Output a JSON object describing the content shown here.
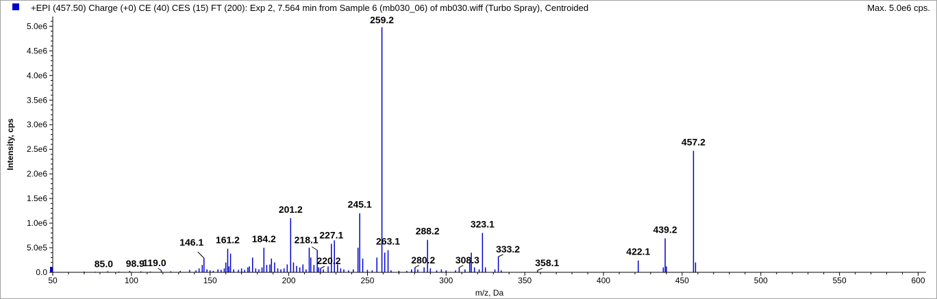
{
  "header": {
    "title": "+EPI (457.50) Charge (+0) CE (40) CES (15) FT (200): Exp 2, 7.564 min from Sample 6 (mb030_06) of mb030.wiff (Turbo Spray), Centroided",
    "max_label": "Max. 5.0e6 cps."
  },
  "colors": {
    "series": "#0000cc",
    "axis": "#000000"
  },
  "chart_data": {
    "type": "bar",
    "xlabel": "m/z, Da",
    "ylabel": "Intensity, cps",
    "xlim": [
      50,
      605
    ],
    "ylim": [
      0,
      5200000.0
    ],
    "xticks": [
      50,
      100,
      150,
      200,
      250,
      300,
      350,
      400,
      450,
      500,
      550,
      600
    ],
    "xtick_labels": [
      "50",
      "100",
      "150",
      "200",
      "250",
      "300",
      "350",
      "400",
      "450",
      "500",
      "550",
      "600"
    ],
    "yticks": [
      0,
      500000,
      1000000,
      1500000,
      2000000,
      2500000,
      3000000,
      3500000,
      4000000,
      4500000,
      5000000
    ],
    "ytick_labels": [
      "0.0",
      "5.0e5",
      "1.0e6",
      "1.5e6",
      "2.0e6",
      "2.5e6",
      "3.0e6",
      "3.5e6",
      "4.0e6",
      "4.5e6",
      "5.0e6"
    ],
    "peaks": [
      {
        "mz": 70.0,
        "intensity": 15000
      },
      {
        "mz": 77.0,
        "intensity": 12000
      },
      {
        "mz": 85.0,
        "intensity": 22000
      },
      {
        "mz": 92.0,
        "intensity": 15000
      },
      {
        "mz": 98.9,
        "intensity": 30000
      },
      {
        "mz": 106.0,
        "intensity": 20000
      },
      {
        "mz": 112.0,
        "intensity": 15000
      },
      {
        "mz": 119.0,
        "intensity": 40000
      },
      {
        "mz": 125.0,
        "intensity": 20000
      },
      {
        "mz": 131.0,
        "intensity": 30000
      },
      {
        "mz": 137.0,
        "intensity": 50000
      },
      {
        "mz": 141.0,
        "intensity": 40000
      },
      {
        "mz": 143.0,
        "intensity": 80000
      },
      {
        "mz": 145.0,
        "intensity": 150000
      },
      {
        "mz": 146.1,
        "intensity": 290000
      },
      {
        "mz": 148.0,
        "intensity": 60000
      },
      {
        "mz": 150.0,
        "intensity": 40000
      },
      {
        "mz": 152.0,
        "intensity": 30000
      },
      {
        "mz": 155.0,
        "intensity": 60000
      },
      {
        "mz": 157.0,
        "intensity": 50000
      },
      {
        "mz": 159.0,
        "intensity": 80000
      },
      {
        "mz": 160.0,
        "intensity": 200000
      },
      {
        "mz": 161.2,
        "intensity": 480000
      },
      {
        "mz": 162.0,
        "intensity": 120000
      },
      {
        "mz": 163.0,
        "intensity": 380000
      },
      {
        "mz": 165.0,
        "intensity": 60000
      },
      {
        "mz": 168.0,
        "intensity": 50000
      },
      {
        "mz": 170.0,
        "intensity": 80000
      },
      {
        "mz": 172.0,
        "intensity": 50000
      },
      {
        "mz": 174.0,
        "intensity": 100000
      },
      {
        "mz": 175.0,
        "intensity": 120000
      },
      {
        "mz": 177.0,
        "intensity": 300000
      },
      {
        "mz": 179.0,
        "intensity": 80000
      },
      {
        "mz": 181.0,
        "intensity": 60000
      },
      {
        "mz": 183.0,
        "intensity": 100000
      },
      {
        "mz": 184.2,
        "intensity": 500000
      },
      {
        "mz": 186.0,
        "intensity": 150000
      },
      {
        "mz": 188.0,
        "intensity": 160000
      },
      {
        "mz": 189.0,
        "intensity": 280000
      },
      {
        "mz": 191.0,
        "intensity": 200000
      },
      {
        "mz": 193.0,
        "intensity": 80000
      },
      {
        "mz": 195.0,
        "intensity": 60000
      },
      {
        "mz": 197.0,
        "intensity": 80000
      },
      {
        "mz": 199.0,
        "intensity": 160000
      },
      {
        "mz": 201.2,
        "intensity": 1100000
      },
      {
        "mz": 203.0,
        "intensity": 200000
      },
      {
        "mz": 205.0,
        "intensity": 130000
      },
      {
        "mz": 207.0,
        "intensity": 100000
      },
      {
        "mz": 209.0,
        "intensity": 160000
      },
      {
        "mz": 211.0,
        "intensity": 60000
      },
      {
        "mz": 213.0,
        "intensity": 500000
      },
      {
        "mz": 214.0,
        "intensity": 300000
      },
      {
        "mz": 216.0,
        "intensity": 150000
      },
      {
        "mz": 218.1,
        "intensity": 450000
      },
      {
        "mz": 219.0,
        "intensity": 100000
      },
      {
        "mz": 220.2,
        "intensity": 80000
      },
      {
        "mz": 222.0,
        "intensity": 60000
      },
      {
        "mz": 225.0,
        "intensity": 120000
      },
      {
        "mz": 227.1,
        "intensity": 580000
      },
      {
        "mz": 229.0,
        "intensity": 650000
      },
      {
        "mz": 231.0,
        "intensity": 160000
      },
      {
        "mz": 233.0,
        "intensity": 80000
      },
      {
        "mz": 235.0,
        "intensity": 60000
      },
      {
        "mz": 238.0,
        "intensity": 40000
      },
      {
        "mz": 241.0,
        "intensity": 60000
      },
      {
        "mz": 244.0,
        "intensity": 500000
      },
      {
        "mz": 245.1,
        "intensity": 1200000
      },
      {
        "mz": 247.0,
        "intensity": 280000
      },
      {
        "mz": 250.0,
        "intensity": 50000
      },
      {
        "mz": 253.0,
        "intensity": 40000
      },
      {
        "mz": 256.0,
        "intensity": 300000
      },
      {
        "mz": 259.2,
        "intensity": 4980000
      },
      {
        "mz": 261.0,
        "intensity": 400000
      },
      {
        "mz": 263.1,
        "intensity": 450000
      },
      {
        "mz": 265.0,
        "intensity": 40000
      },
      {
        "mz": 270.0,
        "intensity": 30000
      },
      {
        "mz": 275.0,
        "intensity": 30000
      },
      {
        "mz": 278.0,
        "intensity": 60000
      },
      {
        "mz": 280.2,
        "intensity": 100000
      },
      {
        "mz": 282.0,
        "intensity": 60000
      },
      {
        "mz": 286.0,
        "intensity": 100000
      },
      {
        "mz": 288.2,
        "intensity": 660000
      },
      {
        "mz": 290.0,
        "intensity": 80000
      },
      {
        "mz": 294.0,
        "intensity": 40000
      },
      {
        "mz": 297.0,
        "intensity": 60000
      },
      {
        "mz": 300.0,
        "intensity": 40000
      },
      {
        "mz": 306.0,
        "intensity": 40000
      },
      {
        "mz": 308.3,
        "intensity": 100000
      },
      {
        "mz": 312.0,
        "intensity": 60000
      },
      {
        "mz": 315.0,
        "intensity": 200000
      },
      {
        "mz": 316.0,
        "intensity": 400000
      },
      {
        "mz": 318.0,
        "intensity": 100000
      },
      {
        "mz": 321.0,
        "intensity": 60000
      },
      {
        "mz": 323.1,
        "intensity": 800000
      },
      {
        "mz": 325.0,
        "intensity": 100000
      },
      {
        "mz": 331.0,
        "intensity": 60000
      },
      {
        "mz": 333.2,
        "intensity": 320000
      },
      {
        "mz": 335.0,
        "intensity": 40000
      },
      {
        "mz": 358.1,
        "intensity": 40000
      },
      {
        "mz": 422.1,
        "intensity": 240000
      },
      {
        "mz": 438.0,
        "intensity": 100000
      },
      {
        "mz": 439.2,
        "intensity": 690000
      },
      {
        "mz": 440.0,
        "intensity": 120000
      },
      {
        "mz": 457.2,
        "intensity": 2470000
      },
      {
        "mz": 458.5,
        "intensity": 200000
      }
    ],
    "annotations": [
      {
        "text": "85.0",
        "mz": 85.0,
        "intensity": 22000
      },
      {
        "text": "98.9",
        "mz": 98.9,
        "intensity": 30000
      },
      {
        "text": "119.0",
        "mz": 119.0,
        "intensity": 40000
      },
      {
        "text": "146.1",
        "mz": 146.1,
        "intensity": 290000
      },
      {
        "text": "161.2",
        "mz": 161.2,
        "intensity": 480000
      },
      {
        "text": "184.2",
        "mz": 184.2,
        "intensity": 500000
      },
      {
        "text": "201.2",
        "mz": 201.2,
        "intensity": 1100000
      },
      {
        "text": "218.1",
        "mz": 218.1,
        "intensity": 450000
      },
      {
        "text": "220.2",
        "mz": 220.2,
        "intensity": 80000
      },
      {
        "text": "227.1",
        "mz": 227.1,
        "intensity": 580000
      },
      {
        "text": "245.1",
        "mz": 245.1,
        "intensity": 1200000
      },
      {
        "text": "259.2",
        "mz": 259.2,
        "intensity": 4980000
      },
      {
        "text": "263.1",
        "mz": 263.1,
        "intensity": 450000
      },
      {
        "text": "280.2",
        "mz": 280.2,
        "intensity": 100000
      },
      {
        "text": "288.2",
        "mz": 288.2,
        "intensity": 660000
      },
      {
        "text": "308.3",
        "mz": 308.3,
        "intensity": 100000
      },
      {
        "text": "323.1",
        "mz": 323.1,
        "intensity": 800000
      },
      {
        "text": "333.2",
        "mz": 333.2,
        "intensity": 320000
      },
      {
        "text": "358.1",
        "mz": 358.1,
        "intensity": 40000
      },
      {
        "text": "422.1",
        "mz": 422.1,
        "intensity": 240000
      },
      {
        "text": "439.2",
        "mz": 439.2,
        "intensity": 690000
      },
      {
        "text": "457.2",
        "mz": 457.2,
        "intensity": 2470000
      }
    ]
  }
}
